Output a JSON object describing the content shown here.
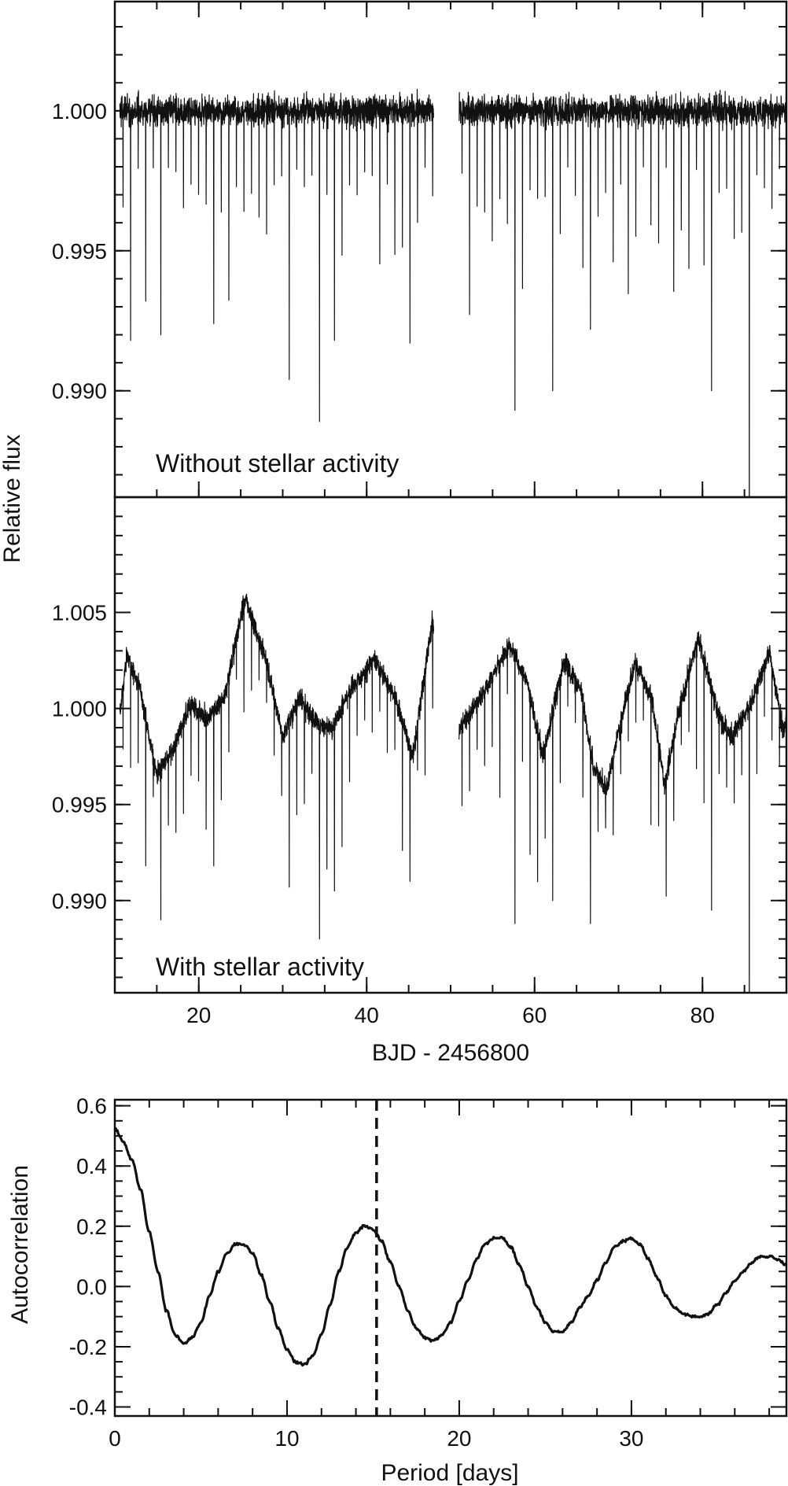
{
  "chart_data": [
    {
      "type": "line",
      "panel": "top",
      "annotation": "Without stellar activity",
      "ylabel": "Relative flux",
      "xlim": [
        10,
        90
      ],
      "ylim": [
        0.9862,
        1.0039
      ],
      "yticks": [
        0.99,
        0.995,
        1.0
      ],
      "yticklabels": [
        "0.990",
        "0.995",
        "1.000"
      ],
      "gap": [
        48,
        51
      ],
      "baseline": 1.0,
      "noise": 0.0005,
      "transit_period": 0.9,
      "transit_depth_range": [
        0.002,
        0.009
      ],
      "deep_transits": [
        {
          "x": 13.5,
          "y": 0.9932
        },
        {
          "x": 15.4,
          "y": 0.992
        },
        {
          "x": 22.0,
          "y": 0.9924
        },
        {
          "x": 30.7,
          "y": 0.9904
        },
        {
          "x": 34.3,
          "y": 0.9889
        },
        {
          "x": 36.2,
          "y": 0.9918
        },
        {
          "x": 45.0,
          "y": 0.9917
        },
        {
          "x": 58.0,
          "y": 0.9893
        },
        {
          "x": 62.0,
          "y": 0.99
        },
        {
          "x": 81.3,
          "y": 0.99
        },
        {
          "x": 86.0,
          "y": 0.98
        }
      ]
    },
    {
      "type": "line",
      "panel": "middle",
      "annotation": "With stellar activity",
      "xlabel": "BJD - 2456800",
      "xlim": [
        10,
        90
      ],
      "ylim": [
        0.9852,
        1.011
      ],
      "xticks": [
        20,
        40,
        60,
        80
      ],
      "xticklabels": [
        "20",
        "40",
        "60",
        "80"
      ],
      "yticks": [
        0.99,
        0.995,
        1.0,
        1.005
      ],
      "yticklabels": [
        "0.990",
        "0.995",
        "1.000",
        "1.005"
      ],
      "gap": [
        48,
        51
      ],
      "trend": [
        [
          10.5,
          0.9996
        ],
        [
          11.5,
          1.0028
        ],
        [
          13.0,
          1.001
        ],
        [
          15.0,
          0.9965
        ],
        [
          17.0,
          0.998
        ],
        [
          19.0,
          1.0002
        ],
        [
          21.0,
          0.9995
        ],
        [
          23.0,
          1.0005
        ],
        [
          25.5,
          1.0058
        ],
        [
          28.0,
          1.0025
        ],
        [
          30.0,
          0.9985
        ],
        [
          32.0,
          1.0005
        ],
        [
          34.0,
          0.9992
        ],
        [
          36.0,
          0.999
        ],
        [
          38.0,
          1.001
        ],
        [
          41.0,
          1.0025
        ],
        [
          43.5,
          1.0005
        ],
        [
          45.5,
          0.9975
        ],
        [
          47.8,
          1.0045
        ],
        [
          51.0,
          0.999
        ],
        [
          53.5,
          1.0005
        ],
        [
          57.0,
          1.0033
        ],
        [
          59.0,
          1.0015
        ],
        [
          61.0,
          0.9975
        ],
        [
          63.5,
          1.0025
        ],
        [
          65.5,
          1.001
        ],
        [
          67.0,
          0.997
        ],
        [
          68.5,
          0.9958
        ],
        [
          72.0,
          1.0025
        ],
        [
          74.0,
          1.0005
        ],
        [
          75.5,
          0.996
        ],
        [
          77.0,
          0.9995
        ],
        [
          79.5,
          1.0037
        ],
        [
          82.0,
          0.9995
        ],
        [
          83.5,
          0.9985
        ],
        [
          86.0,
          1.0005
        ],
        [
          88.0,
          1.003
        ],
        [
          89.5,
          0.999
        ]
      ],
      "noise": 0.0005,
      "transit_period": 0.9,
      "transit_depth_range": [
        0.002,
        0.009
      ],
      "deep_transits": [
        {
          "x": 13.5,
          "y": 0.9918
        },
        {
          "x": 15.4,
          "y": 0.989
        },
        {
          "x": 22.0,
          "y": 0.9918
        },
        {
          "x": 30.7,
          "y": 0.9907
        },
        {
          "x": 34.3,
          "y": 0.988
        },
        {
          "x": 36.2,
          "y": 0.9905
        },
        {
          "x": 45.0,
          "y": 0.991
        },
        {
          "x": 58.0,
          "y": 0.9888
        },
        {
          "x": 62.0,
          "y": 0.99
        },
        {
          "x": 66.5,
          "y": 0.9888
        },
        {
          "x": 81.3,
          "y": 0.9895
        },
        {
          "x": 86.0,
          "y": 0.98
        }
      ]
    },
    {
      "type": "line",
      "panel": "bottom",
      "xlabel": "Period [days]",
      "ylabel": "Autocorrelation",
      "xlim": [
        0,
        39
      ],
      "ylim": [
        -0.43,
        0.62
      ],
      "xticks": [
        0,
        10,
        20,
        30
      ],
      "xticklabels": [
        "0",
        "10",
        "20",
        "30"
      ],
      "yticks": [
        -0.4,
        -0.2,
        0.0,
        0.2,
        0.4,
        0.6
      ],
      "yticklabels": [
        "-0.4",
        "-0.2",
        "0.0",
        "0.2",
        "0.4",
        "0.6"
      ],
      "vline": 15.2,
      "series": [
        {
          "x": [
            0,
            0.5,
            1,
            1.5,
            2,
            2.5,
            3,
            3.5,
            4,
            4.5,
            5,
            5.5,
            6,
            6.5,
            7,
            7.5,
            8,
            8.5,
            9,
            9.5,
            10,
            10.5,
            11,
            11.5,
            12,
            12.5,
            13,
            13.5,
            14,
            14.5,
            15,
            15.5,
            16,
            16.5,
            17,
            17.5,
            18,
            18.5,
            19,
            19.5,
            20,
            20.5,
            21,
            21.5,
            22,
            22.5,
            23,
            23.5,
            24,
            24.5,
            25,
            25.5,
            26,
            26.5,
            27,
            27.5,
            28,
            28.5,
            29,
            29.5,
            30,
            30.5,
            31,
            31.5,
            32,
            32.5,
            33,
            33.5,
            34,
            34.5,
            35,
            35.5,
            36,
            36.5,
            37,
            37.5,
            38,
            38.5,
            39
          ],
          "y": [
            0.52,
            0.48,
            0.42,
            0.32,
            0.18,
            0.05,
            -0.08,
            -0.16,
            -0.19,
            -0.17,
            -0.12,
            -0.03,
            0.05,
            0.11,
            0.14,
            0.14,
            0.11,
            0.04,
            -0.05,
            -0.14,
            -0.21,
            -0.25,
            -0.26,
            -0.23,
            -0.16,
            -0.06,
            0.05,
            0.13,
            0.18,
            0.2,
            0.19,
            0.15,
            0.08,
            0.0,
            -0.08,
            -0.14,
            -0.17,
            -0.18,
            -0.16,
            -0.12,
            -0.05,
            0.02,
            0.09,
            0.14,
            0.16,
            0.16,
            0.13,
            0.07,
            0.0,
            -0.07,
            -0.12,
            -0.15,
            -0.15,
            -0.12,
            -0.07,
            -0.03,
            0.02,
            0.08,
            0.13,
            0.15,
            0.16,
            0.14,
            0.09,
            0.03,
            -0.03,
            -0.07,
            -0.09,
            -0.1,
            -0.1,
            -0.09,
            -0.06,
            -0.02,
            0.02,
            0.05,
            0.08,
            0.1,
            0.1,
            0.09,
            0.07
          ]
        }
      ]
    }
  ]
}
